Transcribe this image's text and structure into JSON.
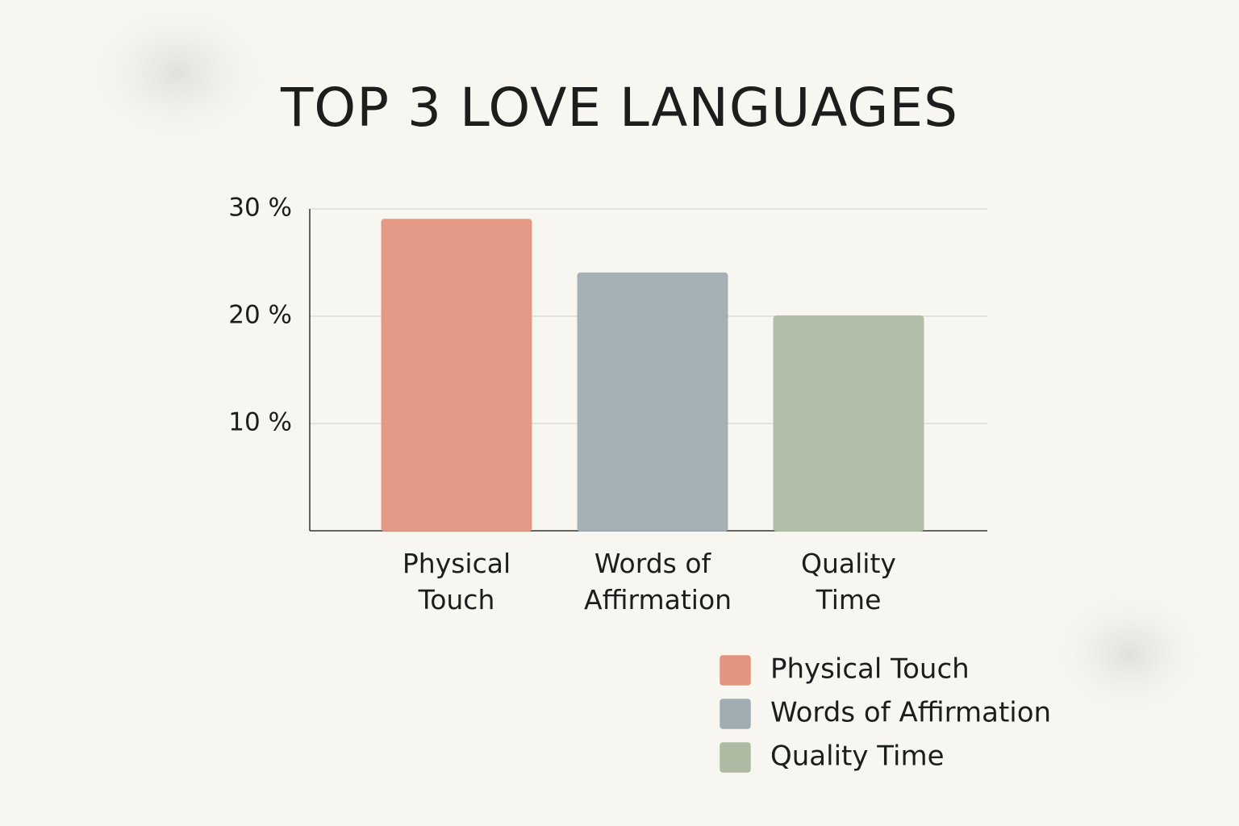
{
  "chart_data": {
    "type": "bar",
    "title": "TOP 3 LOVE LANGUAGES",
    "categories": [
      "Physical Touch",
      "Words of Affirmation",
      "Quality Time"
    ],
    "values": [
      29,
      24,
      20
    ],
    "colors": [
      "#e29580",
      "#a1adb2",
      "#aebba2"
    ],
    "ylim": [
      0,
      30
    ],
    "yticks": [
      {
        "value": 10,
        "label": "10 %"
      },
      {
        "value": 20,
        "label": "20 %"
      },
      {
        "value": 30,
        "label": "30 %"
      }
    ],
    "grid": true,
    "legend": "bottom-right"
  }
}
